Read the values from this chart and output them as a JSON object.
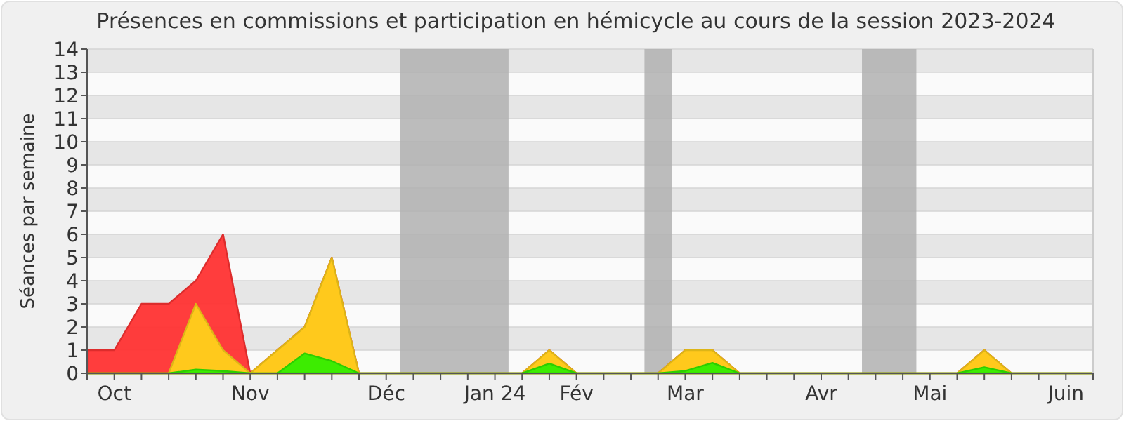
{
  "chart_data": {
    "type": "area",
    "title": "Présences en commissions et participation en hémicycle au cours de la session 2023-2024",
    "ylabel": "Séances par semaine",
    "x": [
      "2023-10-02",
      "2023-10-09",
      "2023-10-16",
      "2023-10-23",
      "2023-10-30",
      "2023-11-06",
      "2023-11-13",
      "2023-11-20",
      "2023-11-27",
      "2023-12-04",
      "2023-12-11",
      "2023-12-18",
      "2023-12-25",
      "2024-01-01",
      "2024-01-08",
      "2024-01-15",
      "2024-01-22",
      "2024-01-29",
      "2024-02-05",
      "2024-02-12",
      "2024-02-19",
      "2024-02-26",
      "2024-03-04",
      "2024-03-11",
      "2024-03-18",
      "2024-03-25",
      "2024-04-01",
      "2024-04-08",
      "2024-04-15",
      "2024-04-22",
      "2024-04-29",
      "2024-05-06",
      "2024-05-13",
      "2024-05-20",
      "2024-05-27",
      "2024-06-03",
      "2024-06-10",
      "2024-06-17"
    ],
    "series": [
      {
        "color": "#ff3333",
        "values": [
          1,
          1,
          3,
          3,
          4,
          6,
          0,
          1,
          2,
          5,
          0,
          0,
          0,
          0,
          0,
          0,
          0,
          1,
          0,
          0,
          0,
          0,
          1,
          1,
          0,
          0,
          0,
          0,
          0,
          0,
          0,
          0,
          0,
          1,
          0,
          0,
          0,
          0
        ]
      },
      {
        "color": "#ffd11a",
        "values": [
          0,
          0,
          0,
          0,
          3,
          1,
          0,
          1,
          2,
          5,
          0,
          0,
          0,
          0,
          0,
          0,
          0,
          1,
          0,
          0,
          0,
          0,
          1,
          1,
          0,
          0,
          0,
          0,
          0,
          0,
          0,
          0,
          0,
          1,
          0,
          0,
          0,
          0
        ]
      },
      {
        "color": "#33ee00",
        "values": [
          0,
          0,
          0,
          0,
          0.16,
          0.1,
          0,
          0,
          0.86,
          0.53,
          0,
          0,
          0,
          0,
          0,
          0,
          0,
          0.42,
          0,
          0,
          0,
          0,
          0.1,
          0.45,
          0,
          0,
          0,
          0,
          0,
          0,
          0,
          0,
          0,
          0.26,
          0,
          0,
          0,
          0
        ]
      }
    ],
    "xlim": [
      "2023-10-02",
      "2024-06-17"
    ],
    "xticks": [
      {
        "value": "2023-10-02",
        "label": null
      },
      {
        "value": "2023-10-09",
        "label": "Oct"
      },
      {
        "value": "2023-10-16",
        "label": null
      },
      {
        "value": "2023-10-23",
        "label": null
      },
      {
        "value": "2023-10-30",
        "label": null
      },
      {
        "value": "2023-11-06",
        "label": null
      },
      {
        "value": "2023-11-13",
        "label": "Nov"
      },
      {
        "value": "2023-11-20",
        "label": null
      },
      {
        "value": "2023-11-27",
        "label": null
      },
      {
        "value": "2023-12-04",
        "label": null
      },
      {
        "value": "2023-12-11",
        "label": null
      },
      {
        "value": "2023-12-18",
        "label": "Déc"
      },
      {
        "value": "2023-12-25",
        "label": null
      },
      {
        "value": "2024-01-01",
        "label": null
      },
      {
        "value": "2024-01-08",
        "label": null
      },
      {
        "value": "2024-01-15",
        "label": "Jan 24"
      },
      {
        "value": "2024-01-22",
        "label": null
      },
      {
        "value": "2024-01-29",
        "label": null
      },
      {
        "value": "2024-02-05",
        "label": "Fév"
      },
      {
        "value": "2024-02-12",
        "label": null
      },
      {
        "value": "2024-02-19",
        "label": null
      },
      {
        "value": "2024-02-26",
        "label": null
      },
      {
        "value": "2024-03-04",
        "label": "Mar"
      },
      {
        "value": "2024-03-11",
        "label": null
      },
      {
        "value": "2024-03-18",
        "label": null
      },
      {
        "value": "2024-03-25",
        "label": null
      },
      {
        "value": "2024-04-01",
        "label": null
      },
      {
        "value": "2024-04-08",
        "label": "Avr"
      },
      {
        "value": "2024-04-15",
        "label": null
      },
      {
        "value": "2024-04-22",
        "label": null
      },
      {
        "value": "2024-04-29",
        "label": null
      },
      {
        "value": "2024-05-06",
        "label": "Mai"
      },
      {
        "value": "2024-05-13",
        "label": null
      },
      {
        "value": "2024-05-20",
        "label": null
      },
      {
        "value": "2024-05-27",
        "label": null
      },
      {
        "value": "2024-06-03",
        "label": null
      },
      {
        "value": "2024-06-10",
        "label": "Juin"
      },
      {
        "value": "2024-06-17",
        "label": null
      }
    ],
    "ylim": [
      0,
      14
    ],
    "yticks": [
      0,
      1,
      2,
      3,
      4,
      5,
      6,
      7,
      8,
      9,
      10,
      11,
      12,
      13,
      14
    ],
    "grid": "y",
    "bands": [
      {
        "axis": "x",
        "from": "2023-12-21T12:00",
        "to": "2024-01-18T12:00",
        "color": "#b0b0b0"
      },
      {
        "axis": "x",
        "from": "2024-02-22T12:00",
        "to": "2024-02-29T12:00",
        "color": "#b0b0b0"
      },
      {
        "axis": "x",
        "from": "2024-04-18T12:00",
        "to": "2024-05-02T12:00",
        "color": "#b0b0b0"
      }
    ]
  }
}
